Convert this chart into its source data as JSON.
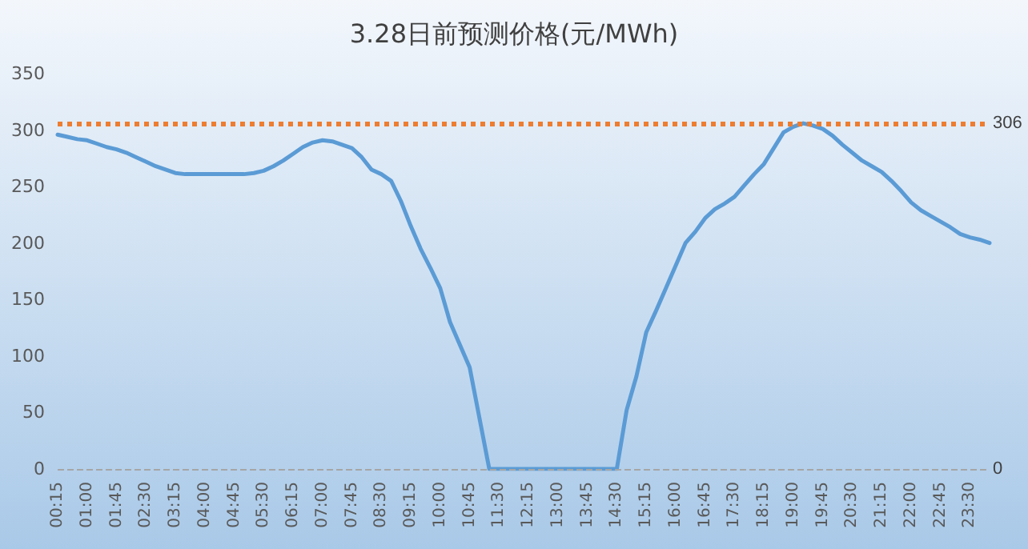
{
  "chart_data": {
    "type": "line",
    "title": "3.28日前预测价格(元/MWh)",
    "categories": [
      "00:15",
      null,
      null,
      "01:00",
      null,
      null,
      "01:45",
      null,
      null,
      "02:30",
      null,
      null,
      "03:15",
      null,
      null,
      "04:00",
      null,
      null,
      "04:45",
      null,
      null,
      "05:30",
      null,
      null,
      "06:15",
      null,
      null,
      "07:00",
      null,
      null,
      "07:45",
      null,
      null,
      "08:30",
      null,
      null,
      "09:15",
      null,
      null,
      "10:00",
      null,
      null,
      "10:45",
      null,
      null,
      "11:30",
      null,
      null,
      "12:15",
      null,
      null,
      "13:00",
      null,
      null,
      "13:45",
      null,
      null,
      "14:30",
      null,
      null,
      "15:15",
      null,
      null,
      "16:00",
      null,
      null,
      "16:45",
      null,
      null,
      "17:30",
      null,
      null,
      "18:15",
      null,
      null,
      "19:00",
      null,
      null,
      "19:45",
      null,
      null,
      "20:30",
      null,
      null,
      "21:15",
      null,
      null,
      "22:00",
      null,
      null,
      "22:45",
      null,
      null,
      "23:30",
      null,
      null
    ],
    "series": [
      {
        "color": "#5b9bd5",
        "values": [
          296,
          294,
          292,
          291,
          288,
          285,
          283,
          280,
          276,
          272,
          268,
          265,
          262,
          261,
          261,
          261,
          261,
          261,
          261,
          261,
          262,
          264,
          268,
          273,
          279,
          285,
          289,
          291,
          290,
          287,
          284,
          276,
          265,
          261,
          255,
          237,
          215,
          195,
          178,
          160,
          130,
          110,
          90,
          45,
          0,
          0,
          0,
          0,
          0,
          0,
          0,
          0,
          0,
          0,
          0,
          0,
          0,
          0,
          52,
          82,
          121,
          140,
          160,
          180,
          200,
          210,
          222,
          230,
          235,
          241,
          251,
          261,
          270,
          284,
          298,
          303,
          306,
          304,
          301,
          295,
          287,
          280,
          273,
          268,
          263,
          255,
          246,
          236,
          229,
          224,
          219,
          214,
          208,
          205,
          203,
          200
        ]
      }
    ],
    "ylim": [
      0,
      350
    ],
    "yticks": [
      0,
      50,
      100,
      150,
      200,
      250,
      300,
      350
    ],
    "grid": false,
    "marker": "none",
    "line_style": "solid",
    "ref_lines": [
      {
        "axis": "y",
        "value": 306,
        "label": "306",
        "color": "#ed7d31",
        "line_style": "dotted"
      },
      {
        "axis": "y",
        "value": 0,
        "label": "0",
        "color": "#a6a6a6",
        "line_style": "dashed"
      }
    ]
  }
}
